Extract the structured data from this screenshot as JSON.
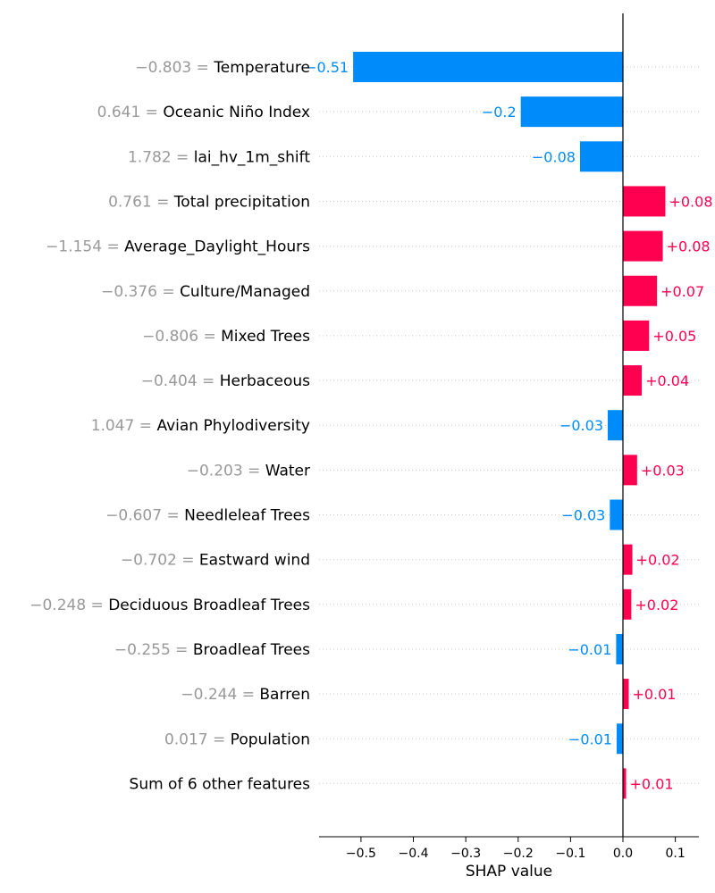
{
  "chart_data": {
    "type": "bar",
    "subtype": "shap-waterfall",
    "xlabel": "SHAP value",
    "xlim": [
      -0.58,
      0.145
    ],
    "xticks": [
      -0.5,
      -0.4,
      -0.3,
      -0.2,
      -0.1,
      0.0,
      0.1
    ],
    "xtick_labels": [
      "−0.5",
      "−0.4",
      "−0.3",
      "−0.2",
      "−0.1",
      "0.0",
      "0.1"
    ],
    "features": [
      {
        "value": "−0.803",
        "name": "Temperature",
        "shap": -0.515,
        "label": "−0.51"
      },
      {
        "value": "0.641",
        "name": "Oceanic Niño Index",
        "shap": -0.195,
        "label": "−0.2"
      },
      {
        "value": "1.782",
        "name": "lai_hv_1m_shift",
        "shap": -0.082,
        "label": "−0.08"
      },
      {
        "value": "0.761",
        "name": "Total precipitation",
        "shap": 0.081,
        "label": "+0.08"
      },
      {
        "value": "−1.154",
        "name": "Average_Daylight_Hours",
        "shap": 0.076,
        "label": "+0.08"
      },
      {
        "value": "−0.376",
        "name": "Culture/Managed",
        "shap": 0.065,
        "label": "+0.07"
      },
      {
        "value": "−0.806",
        "name": "Mixed Trees",
        "shap": 0.05,
        "label": "+0.05"
      },
      {
        "value": "−0.404",
        "name": "Herbaceous",
        "shap": 0.036,
        "label": "+0.04"
      },
      {
        "value": "1.047",
        "name": "Avian Phylodiversity",
        "shap": -0.029,
        "label": "−0.03"
      },
      {
        "value": "−0.203",
        "name": "Water",
        "shap": 0.027,
        "label": "+0.03"
      },
      {
        "value": "−0.607",
        "name": "Needleleaf Trees",
        "shap": -0.025,
        "label": "−0.03"
      },
      {
        "value": "−0.702",
        "name": "Eastward wind",
        "shap": 0.018,
        "label": "+0.02"
      },
      {
        "value": "−0.248",
        "name": "Deciduous Broadleaf Trees",
        "shap": 0.016,
        "label": "+0.02"
      },
      {
        "value": "−0.255",
        "name": "Broadleaf Trees",
        "shap": -0.013,
        "label": "−0.01"
      },
      {
        "value": "−0.244",
        "name": "Barren",
        "shap": 0.011,
        "label": "+0.01"
      },
      {
        "value": "0.017",
        "name": "Population",
        "shap": -0.012,
        "label": "−0.01"
      },
      {
        "value": "",
        "name": "Sum of 6 other features",
        "shap": 0.006,
        "label": "+0.01"
      }
    ],
    "colors": {
      "positive": "#ff0051",
      "negative": "#008bfb",
      "value_text": "#999999"
    }
  }
}
